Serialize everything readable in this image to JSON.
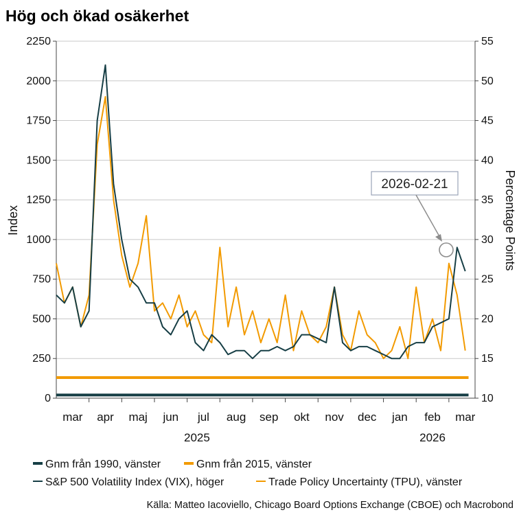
{
  "chart_data": {
    "type": "line",
    "title": "Hög och ökad osäkerhet",
    "xlabel": "",
    "ylabel_left": "Index",
    "ylabel_right": "Percentage Points",
    "ylim_left": [
      0,
      2250
    ],
    "ylim_right": [
      10,
      55
    ],
    "yticks_left": [
      0,
      250,
      500,
      750,
      1000,
      1250,
      1500,
      1750,
      2000,
      2250
    ],
    "yticks_right": [
      10,
      15,
      20,
      25,
      30,
      35,
      40,
      45,
      50,
      55
    ],
    "x_month_labels": [
      "mar",
      "apr",
      "maj",
      "jun",
      "jul",
      "aug",
      "sep",
      "okt",
      "nov",
      "dec",
      "jan",
      "feb",
      "mar"
    ],
    "x_year_labels": [
      "2025",
      "2026"
    ],
    "x_range_months": [
      0,
      12.8
    ],
    "grid": true,
    "series": [
      {
        "name": "Gnm från 1990, vänster",
        "axis": "left",
        "color": "#163e45",
        "x": [
          0,
          12.6
        ],
        "values": [
          20,
          20
        ]
      },
      {
        "name": "Gnm från 2015, vänster",
        "axis": "left",
        "color": "#f29a00",
        "x": [
          0,
          12.6
        ],
        "values": [
          130,
          130
        ]
      },
      {
        "name": "S&P 500 Volatility Index (VIX), höger",
        "axis": "right",
        "color": "#163e45",
        "x": [
          0,
          0.25,
          0.5,
          0.75,
          1,
          1.25,
          1.5,
          1.75,
          2,
          2.25,
          2.5,
          2.75,
          3,
          3.25,
          3.5,
          3.75,
          4,
          4.25,
          4.5,
          4.75,
          5,
          5.25,
          5.5,
          5.75,
          6,
          6.25,
          6.5,
          6.75,
          7,
          7.25,
          7.5,
          7.75,
          8,
          8.25,
          8.5,
          8.75,
          9,
          9.25,
          9.5,
          9.75,
          10,
          10.25,
          10.5,
          10.75,
          11,
          11.25,
          11.5,
          11.75,
          12,
          12.25,
          12.5
        ],
        "values": [
          23,
          22,
          24,
          19,
          21,
          45,
          52,
          37,
          30,
          25,
          24,
          22,
          22,
          19,
          18,
          20,
          21,
          17,
          16,
          18,
          17,
          15.5,
          16,
          16,
          15,
          16,
          16,
          16.5,
          16,
          16.5,
          18,
          18,
          17.5,
          17,
          24,
          17,
          16,
          16.5,
          16.5,
          16,
          15.5,
          15,
          15,
          16.5,
          17,
          17,
          19,
          19.5,
          20,
          29,
          26
        ]
      },
      {
        "name": "Trade Policy Uncertainty (TPU), vänster",
        "axis": "left",
        "color": "#f29a00",
        "x": [
          0,
          0.25,
          0.5,
          0.75,
          1,
          1.25,
          1.5,
          1.75,
          2,
          2.25,
          2.5,
          2.75,
          3,
          3.25,
          3.5,
          3.75,
          4,
          4.25,
          4.5,
          4.75,
          5,
          5.25,
          5.5,
          5.75,
          6,
          6.25,
          6.5,
          6.75,
          7,
          7.25,
          7.5,
          7.75,
          8,
          8.25,
          8.5,
          8.75,
          9,
          9.25,
          9.5,
          9.75,
          10,
          10.25,
          10.5,
          10.75,
          11,
          11.25,
          11.5,
          11.75,
          12,
          12.25,
          12.5
        ],
        "values": [
          850,
          600,
          700,
          450,
          650,
          1600,
          1900,
          1250,
          900,
          700,
          850,
          1150,
          550,
          600,
          500,
          650,
          450,
          550,
          400,
          350,
          950,
          450,
          700,
          400,
          550,
          350,
          500,
          350,
          650,
          300,
          550,
          400,
          350,
          450,
          700,
          400,
          300,
          550,
          400,
          350,
          250,
          300,
          450,
          250,
          700,
          350,
          500,
          300,
          850,
          650,
          300
        ]
      }
    ],
    "annotation": {
      "label": "2026-02-21",
      "x": 11.6,
      "y_left": 940
    },
    "source": "Källa: Matteo Iacoviello, Chicago Board Options Exchange (CBOE) och Macrobond"
  }
}
